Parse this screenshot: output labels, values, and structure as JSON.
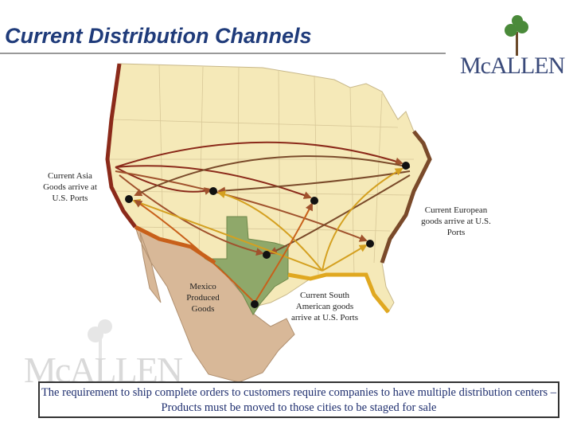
{
  "title": "Current Distribution Channels",
  "logo": "McALLEN",
  "labels": {
    "asia": "Current Asia Goods arrive at U.S. Ports",
    "europe": "Current European goods arrive at U.S. Ports",
    "mexico": "Mexico Produced Goods",
    "south_america": "Current South American goods arrive at U.S. Ports"
  },
  "footer": "The requirement to ship complete orders to customers require companies to have multiple distribution centers – Products must be moved to those cities to be staged for sale"
}
